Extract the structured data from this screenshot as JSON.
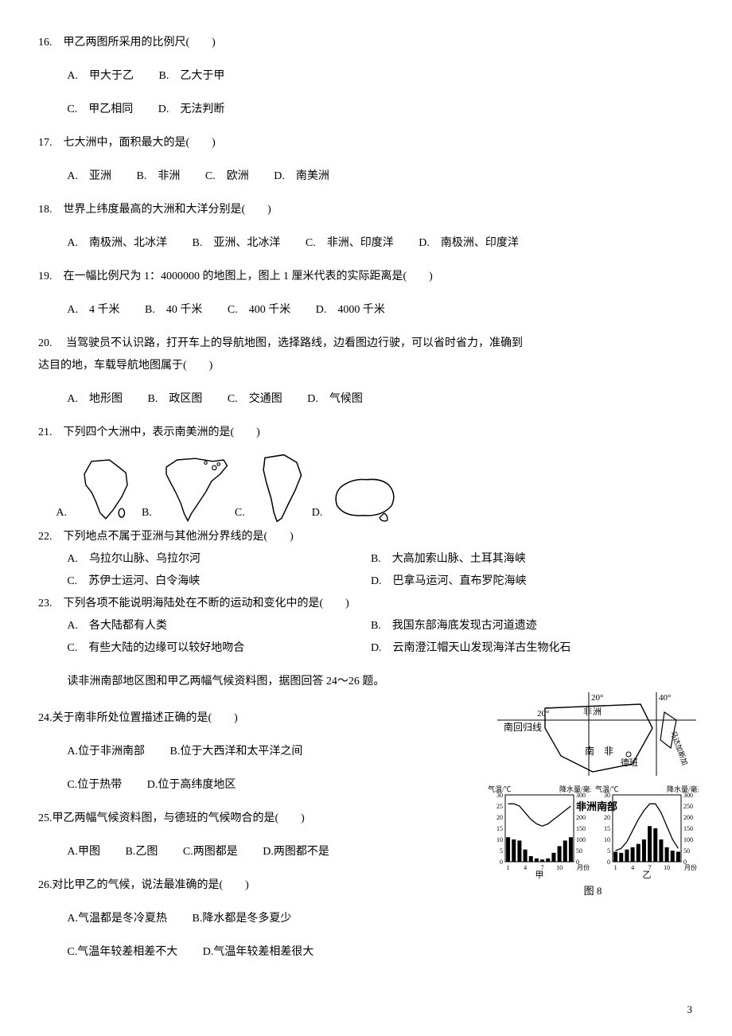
{
  "page_number": "3",
  "africa_map": {
    "caption": "非洲南部",
    "labels": {
      "tropic": "南回归线",
      "continent_small": "非",
      "continent_big": "南　非",
      "city": "德班",
      "island": "马达加斯加",
      "lon20": "20°",
      "lon40": "40°",
      "lat20": "20°",
      "africa_word": "洲"
    }
  },
  "climate_fig": {
    "caption": "图 8",
    "y_temp_label": "气温/℃",
    "y_precip_label": "降水量/毫米",
    "x_label": "月份",
    "left_name": "甲",
    "right_name": "乙",
    "temp_ticks": [
      0,
      5,
      10,
      15,
      20,
      25,
      30
    ],
    "precip_ticks": [
      0,
      50,
      100,
      150,
      200,
      250,
      300
    ],
    "month_ticks": [
      1,
      4,
      7,
      10
    ],
    "left": {
      "temp": [
        26,
        26,
        25,
        22,
        19,
        17,
        16,
        17,
        19,
        21,
        23,
        25
      ],
      "precip": [
        110,
        100,
        95,
        55,
        25,
        15,
        10,
        15,
        40,
        70,
        95,
        110
      ],
      "temp_color": "#000",
      "bar_color": "#000"
    },
    "right": {
      "temp": [
        5,
        6,
        9,
        14,
        19,
        23,
        26,
        26,
        22,
        16,
        10,
        6
      ],
      "precip": [
        45,
        40,
        55,
        65,
        80,
        100,
        160,
        150,
        100,
        65,
        50,
        45
      ],
      "temp_color": "#000",
      "bar_color": "#000"
    }
  },
  "continent_choice_labels": {
    "a": "A.",
    "b": "B.",
    "c": "C.",
    "d": "D."
  },
  "q16": {
    "stem": "16.　甲乙两图所采用的比例尺(　　)",
    "a": "A.　甲大于乙",
    "b": "B.　乙大于甲",
    "c": "C.　甲乙相同",
    "d": "D.　无法判断"
  },
  "q17": {
    "stem": "17.　七大洲中，面积最大的是(　　)",
    "a": "A.　亚洲",
    "b": "B.　非洲",
    "c": "C.　欧洲",
    "d": "D.　南美洲"
  },
  "q18": {
    "stem": "18.　世界上纬度最高的大洲和大洋分别是(　　)",
    "a": "A.　南极洲、北冰洋",
    "b": "B.　亚洲、北冰洋",
    "c": "C.　非洲、印度洋",
    "d": "D.　南极洲、印度洋"
  },
  "q19": {
    "stem": "19.　在一幅比例尺为 1：4000000 的地图上，图上 1 厘米代表的实际距离是(　　)",
    "a": "A.　4 千米",
    "b": "B.　40 千米",
    "c": "C.　400 千米",
    "d": "D.　4000 千米"
  },
  "q20": {
    "stem1": "20.　 当驾驶员不认识路，打开车上的导航地图，选择路线，边看图边行驶，可以省时省力，准确到",
    "stem2": "达目的地，车载导航地图属于(　　)",
    "a": "A.　地形图",
    "b": "B.　政区图",
    "c": "C.　交通图",
    "d": "D.　气候图"
  },
  "q21": {
    "stem": "21.　下列四个大洲中，表示南美洲的是(　　)"
  },
  "q22": {
    "stem": "22.　下列地点不属于亚洲与其他洲分界线的是(　　)",
    "a": "A.　乌拉尔山脉、乌拉尔河",
    "b": "B.　大高加索山脉、土耳其海峡",
    "c": "C.　苏伊士运河、白令海峡",
    "d": "D.　巴拿马运河、直布罗陀海峡"
  },
  "q23": {
    "stem": "23.　下列各项不能说明海陆处在不断的运动和变化中的是(　　)",
    "a": "A.　各大陆都有人类",
    "b": "B.　我国东部海底发现古河道遗迹",
    "c": "C.　有些大陆的边缘可以较好地吻合",
    "d": "D.　云南澄江帽天山发现海洋古生物化石"
  },
  "lead24": "读非洲南部地区图和甲乙两幅气候资料图，据图回答 24～26 题。",
  "q24": {
    "stem": "24.关于南非所处位置描述正确的是(　　)",
    "a": "A.位于非洲南部",
    "b": "B.位于大西洋和太平洋之间",
    "c": "C.位于热带",
    "d": "D.位于高纬度地区"
  },
  "q25": {
    "stem": "25.甲乙两幅气候资料图，与德班的气候吻合的是(　　)",
    "a": "A.甲图",
    "b": "B.乙图",
    "c": "C.两图都是",
    "d": "D.两图都不是"
  },
  "q26": {
    "stem": "26.对比甲乙的气候，说法最准确的是(　　)",
    "a": "A.气温都是冬冷夏热",
    "b": "B.降水都是冬多夏少",
    "c": "C.气温年较差相差不大",
    "d": "D.气温年较差相差很大"
  }
}
